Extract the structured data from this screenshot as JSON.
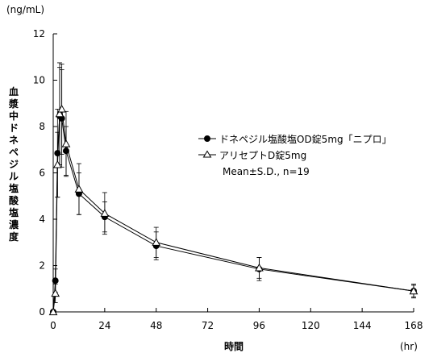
{
  "chart_data": {
    "type": "line",
    "y_unit": "(ng/mL)",
    "x_unit": "(hr)",
    "xlabel": "時間",
    "ylabel": "血漿中ドネペジル塩酸塩濃度",
    "x_ticks": [
      0,
      24,
      48,
      72,
      96,
      120,
      144,
      168
    ],
    "y_ticks": [
      0,
      2,
      4,
      6,
      8,
      10,
      12
    ],
    "xlim": [
      0,
      168
    ],
    "ylim": [
      0,
      12
    ],
    "grid": false,
    "legend_placement": "right",
    "legend_note": "Mean±S.D., n=19",
    "series": [
      {
        "name": "ドネペジル塩酸塩OD錠5mg「ニプロ」",
        "marker": "filled-circle",
        "x": [
          0,
          1,
          2,
          3,
          4,
          6,
          12,
          24,
          48,
          96,
          168
        ],
        "y": [
          0.0,
          1.35,
          6.85,
          8.45,
          8.35,
          6.95,
          5.1,
          4.1,
          2.85,
          1.85,
          0.9
        ],
        "sd": [
          0.0,
          0.5,
          1.9,
          2.1,
          2.1,
          1.05,
          0.9,
          0.65,
          0.6,
          0.5,
          0.25
        ]
      },
      {
        "name": "アリセプトD錠5mg",
        "marker": "open-triangle",
        "x": [
          0,
          1,
          2,
          3,
          4,
          6,
          12,
          24,
          48,
          96,
          168
        ],
        "y": [
          0.0,
          0.8,
          6.35,
          8.55,
          8.75,
          7.25,
          5.3,
          4.25,
          3.0,
          1.9,
          0.9
        ],
        "sd": [
          0.0,
          0.4,
          1.4,
          2.2,
          1.95,
          1.4,
          1.1,
          0.9,
          0.65,
          0.45,
          0.3
        ]
      }
    ]
  }
}
